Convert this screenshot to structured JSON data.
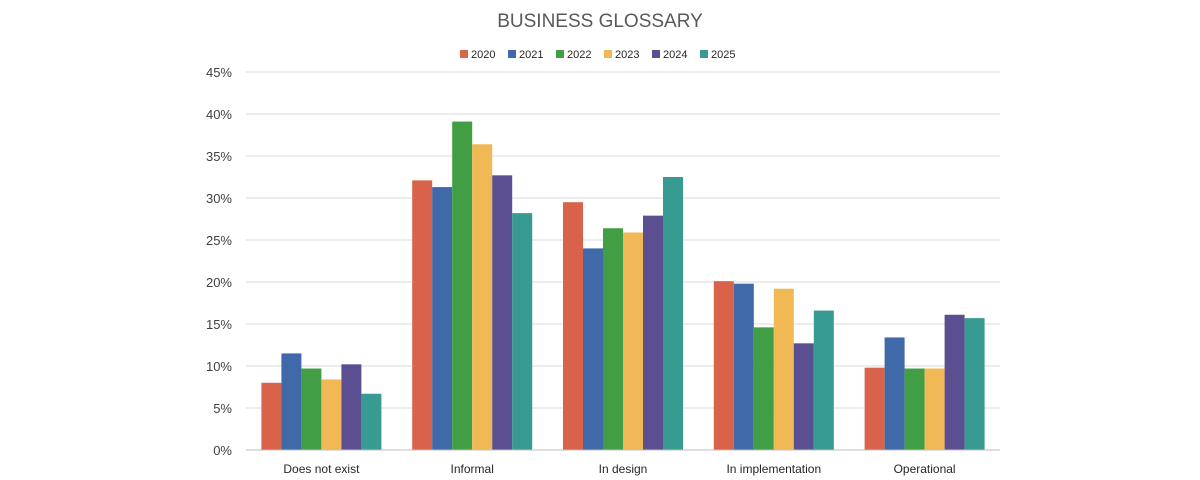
{
  "chart_data": {
    "type": "bar",
    "title": "BUSINESS GLOSSARY",
    "xlabel": "",
    "ylabel": "",
    "categories": [
      "Does not exist",
      "Informal",
      "In design",
      "In implementation",
      "Operational"
    ],
    "series": [
      {
        "name": "2020",
        "color": "#d9634a",
        "values": [
          8.0,
          32.1,
          29.5,
          20.1,
          9.8
        ]
      },
      {
        "name": "2021",
        "color": "#3f69a8",
        "values": [
          11.5,
          31.3,
          24.0,
          19.8,
          13.4
        ]
      },
      {
        "name": "2022",
        "color": "#429e45",
        "values": [
          9.7,
          39.1,
          26.4,
          14.6,
          9.7
        ]
      },
      {
        "name": "2023",
        "color": "#f0b955",
        "values": [
          8.4,
          36.4,
          25.9,
          19.2,
          9.7
        ]
      },
      {
        "name": "2024",
        "color": "#5b4f92",
        "values": [
          10.2,
          32.7,
          27.9,
          12.7,
          16.1
        ]
      },
      {
        "name": "2025",
        "color": "#389b91",
        "values": [
          6.7,
          28.2,
          32.5,
          16.6,
          15.7
        ]
      }
    ],
    "ylim": [
      0,
      45
    ],
    "yticks": [
      "0%",
      "5%",
      "10%",
      "15%",
      "20%",
      "25%",
      "30%",
      "35%",
      "40%",
      "45%"
    ],
    "grid": true,
    "legend_position": "top"
  }
}
